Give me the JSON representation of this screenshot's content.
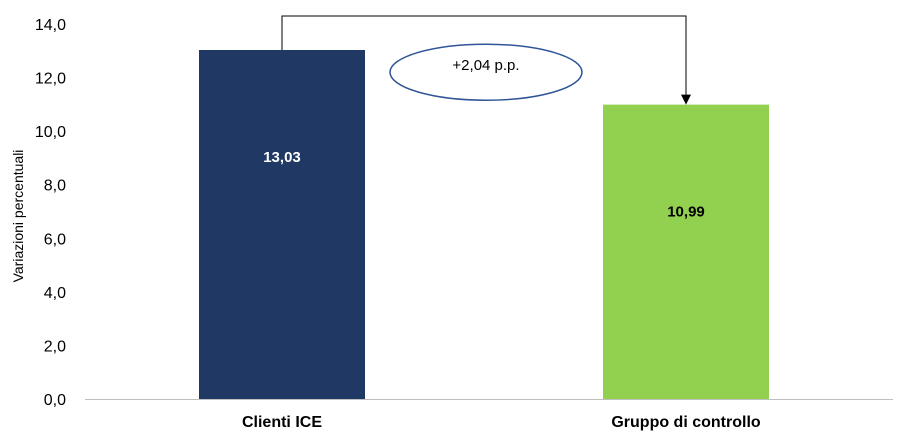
{
  "chart_data": {
    "type": "bar",
    "categories": [
      "Clienti ICE",
      "Gruppo di controllo"
    ],
    "values": [
      13.03,
      10.99
    ],
    "data_labels": [
      "13,03",
      "10,99"
    ],
    "colors": [
      "#203864",
      "#92D050"
    ],
    "data_label_colors": [
      "#ffffff",
      "#000000"
    ],
    "ylabel": "Variazioni percentuali",
    "xlabel": "",
    "ylim": [
      0,
      14
    ],
    "ytick_step": 2,
    "yticks": [
      "0,0",
      "2,0",
      "4,0",
      "6,0",
      "8,0",
      "10,0",
      "12,0",
      "14,0"
    ],
    "grid": false,
    "annotation": {
      "text": "+2,04  p.p.",
      "from_category": "Clienti ICE",
      "to_category": "Gruppo di controllo",
      "bracket_value": 14.3
    }
  }
}
